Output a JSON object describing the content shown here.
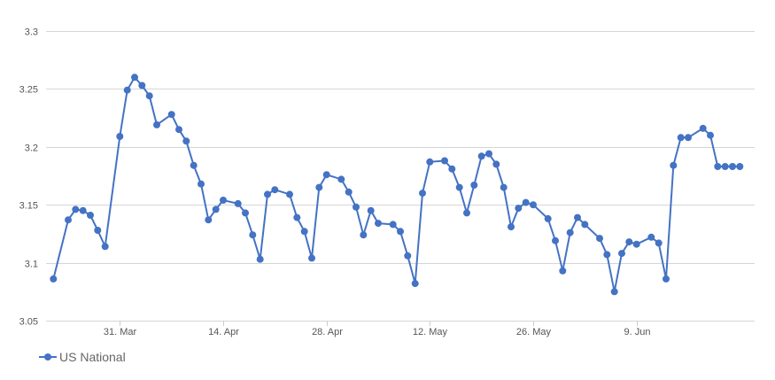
{
  "chart_data": {
    "type": "line",
    "ylim": [
      3.05,
      3.3
    ],
    "yticks": [
      3.05,
      3.1,
      3.15,
      3.2,
      3.25,
      3.3
    ],
    "ytick_labels": [
      "3.05",
      "3.1",
      "3.15",
      "3.2",
      "3.25",
      "3.3"
    ],
    "xticks": [
      {
        "day": 31,
        "label": "31. Mar"
      },
      {
        "day": 45,
        "label": "14. Apr"
      },
      {
        "day": 59,
        "label": "28. Apr"
      },
      {
        "day": 73,
        "label": "12. May"
      },
      {
        "day": 87,
        "label": "26. May"
      },
      {
        "day": 101,
        "label": "9. Jun"
      }
    ],
    "grid": true,
    "legend_position": "bottom-left",
    "series": [
      {
        "name": "US National",
        "color": "#4472c4",
        "x_days": [
          22,
          24,
          25,
          26,
          27,
          28,
          29,
          31,
          32,
          33,
          34,
          35,
          36,
          38,
          39,
          40,
          41,
          42,
          43,
          44,
          45,
          47,
          48,
          49,
          50,
          51,
          52,
          54,
          55,
          56,
          57,
          58,
          59,
          61,
          62,
          63,
          64,
          65,
          66,
          68,
          69,
          70,
          71,
          72,
          73,
          75,
          76,
          77,
          78,
          79,
          80,
          81,
          82,
          83,
          84,
          85,
          86,
          87,
          89,
          90,
          91,
          92,
          93,
          94,
          96,
          97,
          98,
          99,
          100,
          101,
          103,
          104,
          105,
          106,
          107,
          108,
          110,
          111,
          112,
          113,
          114,
          115
        ],
        "values": [
          3.086,
          3.137,
          3.146,
          3.145,
          3.141,
          3.128,
          3.114,
          3.209,
          3.249,
          3.26,
          3.253,
          3.244,
          3.219,
          3.228,
          3.215,
          3.205,
          3.184,
          3.168,
          3.137,
          3.146,
          3.154,
          3.151,
          3.143,
          3.124,
          3.103,
          3.159,
          3.163,
          3.159,
          3.139,
          3.127,
          3.104,
          3.165,
          3.176,
          3.172,
          3.161,
          3.148,
          3.124,
          3.145,
          3.134,
          3.133,
          3.127,
          3.106,
          3.082,
          3.16,
          3.187,
          3.188,
          3.181,
          3.165,
          3.143,
          3.167,
          3.192,
          3.194,
          3.185,
          3.165,
          3.131,
          3.147,
          3.152,
          3.15,
          3.138,
          3.119,
          3.093,
          3.126,
          3.139,
          3.133,
          3.121,
          3.107,
          3.075,
          3.108,
          3.118,
          3.116,
          3.122,
          3.117,
          3.086,
          3.184,
          3.208,
          3.208,
          3.216,
          3.21,
          3.183,
          3.183,
          3.183,
          3.183
        ]
      }
    ]
  }
}
